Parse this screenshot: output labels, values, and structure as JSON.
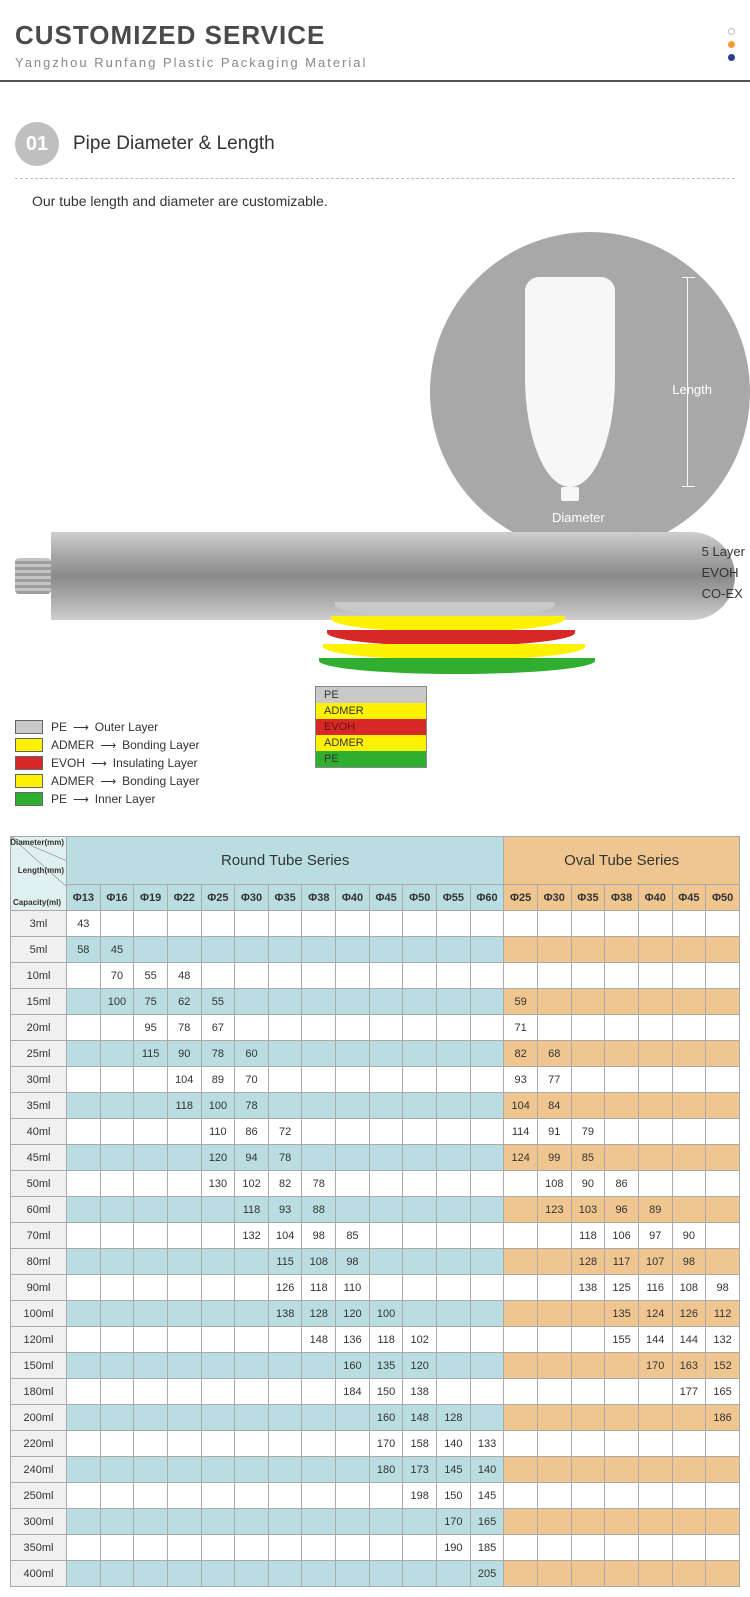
{
  "header": {
    "title": "CUSTOMIZED SERVICE",
    "subtitle": "Yangzhou Runfang Plastic Packaging Material",
    "dot_colors": [
      "#ffffff",
      "#f29b2e",
      "#2b3a8f"
    ]
  },
  "section": {
    "num": "01",
    "title": "Pipe Diameter & Length",
    "desc": "Our tube length and diameter are customizable.",
    "badge_bg": "#bfbfbf"
  },
  "illus": {
    "circle_bg": "#a8a8a8",
    "length_label": "Length",
    "diameter_label": "Diameter"
  },
  "layers": {
    "right_text": [
      "5 Layer",
      "EVOH",
      "CO-EX"
    ],
    "legend": [
      {
        "name": "PE",
        "desc": "Outer Layer",
        "color": "#c9c9c9"
      },
      {
        "name": "ADMER",
        "desc": "Bonding Layer",
        "color": "#fff200"
      },
      {
        "name": "EVOH",
        "desc": "Insulating Layer",
        "color": "#d72828"
      },
      {
        "name": "ADMER",
        "desc": "Bonding Layer",
        "color": "#fff200"
      },
      {
        "name": "PE",
        "desc": "Inner Layer",
        "color": "#2fae2f"
      }
    ],
    "splay_labels": [
      "PE",
      "ADMER",
      "EVOH",
      "ADMER",
      "PE"
    ],
    "splay_colors": [
      "#c9c9c9",
      "#fff200",
      "#d72828",
      "#fff200",
      "#2fae2f"
    ]
  },
  "table": {
    "corner_labels": [
      "Diameter(mm)",
      "Length(mm)",
      "Capacity(ml)"
    ],
    "round_title": "Round Tube Series",
    "oval_title": "Oval Tube Series",
    "round_cols": [
      "Φ13",
      "Φ16",
      "Φ19",
      "Φ22",
      "Φ25",
      "Φ30",
      "Φ35",
      "Φ38",
      "Φ40",
      "Φ45",
      "Φ50",
      "Φ55",
      "Φ60"
    ],
    "oval_cols": [
      "Φ25",
      "Φ30",
      "Φ35",
      "Φ38",
      "Φ40",
      "Φ45",
      "Φ50"
    ],
    "colors": {
      "round_header_bg": "#b9dde0",
      "oval_header_bg": "#f0c690",
      "row_cap_bg": "#f0f0f0",
      "border": "#aaaaaa"
    },
    "rows": [
      {
        "cap": "3ml",
        "stripe": true,
        "r": [
          "43",
          "",
          "",
          "",
          "",
          "",
          "",
          "",
          "",
          "",
          "",
          "",
          ""
        ],
        "o": [
          "",
          "",
          "",
          "",
          "",
          "",
          ""
        ]
      },
      {
        "cap": "5ml",
        "stripe": false,
        "r": [
          "58",
          "45",
          "",
          "",
          "",
          "",
          "",
          "",
          "",
          "",
          "",
          "",
          ""
        ],
        "o": [
          "",
          "",
          "",
          "",
          "",
          "",
          ""
        ]
      },
      {
        "cap": "10ml",
        "stripe": true,
        "r": [
          "",
          "70",
          "55",
          "48",
          "",
          "",
          "",
          "",
          "",
          "",
          "",
          "",
          ""
        ],
        "o": [
          "",
          "",
          "",
          "",
          "",
          "",
          ""
        ]
      },
      {
        "cap": "15ml",
        "stripe": false,
        "r": [
          "",
          "100",
          "75",
          "62",
          "55",
          "",
          "",
          "",
          "",
          "",
          "",
          "",
          ""
        ],
        "o": [
          "59",
          "",
          "",
          "",
          "",
          "",
          ""
        ]
      },
      {
        "cap": "20ml",
        "stripe": true,
        "r": [
          "",
          "",
          "95",
          "78",
          "67",
          "",
          "",
          "",
          "",
          "",
          "",
          "",
          ""
        ],
        "o": [
          "71",
          "",
          "",
          "",
          "",
          "",
          ""
        ]
      },
      {
        "cap": "25ml",
        "stripe": false,
        "r": [
          "",
          "",
          "115",
          "90",
          "78",
          "60",
          "",
          "",
          "",
          "",
          "",
          "",
          ""
        ],
        "o": [
          "82",
          "68",
          "",
          "",
          "",
          "",
          ""
        ]
      },
      {
        "cap": "30ml",
        "stripe": true,
        "r": [
          "",
          "",
          "",
          "104",
          "89",
          "70",
          "",
          "",
          "",
          "",
          "",
          "",
          ""
        ],
        "o": [
          "93",
          "77",
          "",
          "",
          "",
          "",
          ""
        ]
      },
      {
        "cap": "35ml",
        "stripe": false,
        "r": [
          "",
          "",
          "",
          "118",
          "100",
          "78",
          "",
          "",
          "",
          "",
          "",
          "",
          ""
        ],
        "o": [
          "104",
          "84",
          "",
          "",
          "",
          "",
          ""
        ]
      },
      {
        "cap": "40ml",
        "stripe": true,
        "r": [
          "",
          "",
          "",
          "",
          "110",
          "86",
          "72",
          "",
          "",
          "",
          "",
          "",
          ""
        ],
        "o": [
          "114",
          "91",
          "79",
          "",
          "",
          "",
          ""
        ]
      },
      {
        "cap": "45ml",
        "stripe": false,
        "r": [
          "",
          "",
          "",
          "",
          "120",
          "94",
          "78",
          "",
          "",
          "",
          "",
          "",
          ""
        ],
        "o": [
          "124",
          "99",
          "85",
          "",
          "",
          "",
          ""
        ]
      },
      {
        "cap": "50ml",
        "stripe": true,
        "r": [
          "",
          "",
          "",
          "",
          "130",
          "102",
          "82",
          "78",
          "",
          "",
          "",
          "",
          ""
        ],
        "o": [
          "",
          "108",
          "90",
          "86",
          "",
          "",
          ""
        ]
      },
      {
        "cap": "60ml",
        "stripe": false,
        "r": [
          "",
          "",
          "",
          "",
          "",
          "118",
          "93",
          "88",
          "",
          "",
          "",
          "",
          ""
        ],
        "o": [
          "",
          "123",
          "103",
          "96",
          "89",
          "",
          ""
        ]
      },
      {
        "cap": "70ml",
        "stripe": true,
        "r": [
          "",
          "",
          "",
          "",
          "",
          "132",
          "104",
          "98",
          "85",
          "",
          "",
          "",
          ""
        ],
        "o": [
          "",
          "",
          "118",
          "106",
          "97",
          "90",
          ""
        ]
      },
      {
        "cap": "80ml",
        "stripe": false,
        "r": [
          "",
          "",
          "",
          "",
          "",
          "",
          "115",
          "108",
          "98",
          "",
          "",
          "",
          ""
        ],
        "o": [
          "",
          "",
          "128",
          "117",
          "107",
          "98",
          ""
        ]
      },
      {
        "cap": "90ml",
        "stripe": true,
        "r": [
          "",
          "",
          "",
          "",
          "",
          "",
          "126",
          "118",
          "110",
          "",
          "",
          "",
          ""
        ],
        "o": [
          "",
          "",
          "138",
          "125",
          "116",
          "108",
          "98"
        ]
      },
      {
        "cap": "100ml",
        "stripe": false,
        "r": [
          "",
          "",
          "",
          "",
          "",
          "",
          "138",
          "128",
          "120",
          "100",
          "",
          "",
          ""
        ],
        "o": [
          "",
          "",
          "",
          "135",
          "124",
          "126",
          "112"
        ]
      },
      {
        "cap": "120ml",
        "stripe": true,
        "r": [
          "",
          "",
          "",
          "",
          "",
          "",
          "",
          "148",
          "136",
          "118",
          "102",
          "",
          ""
        ],
        "o": [
          "",
          "",
          "",
          "155",
          "144",
          "144",
          "132"
        ]
      },
      {
        "cap": "150ml",
        "stripe": false,
        "r": [
          "",
          "",
          "",
          "",
          "",
          "",
          "",
          "",
          "160",
          "135",
          "120",
          "",
          ""
        ],
        "o": [
          "",
          "",
          "",
          "",
          "170",
          "163",
          "152"
        ]
      },
      {
        "cap": "180ml",
        "stripe": true,
        "r": [
          "",
          "",
          "",
          "",
          "",
          "",
          "",
          "",
          "184",
          "150",
          "138",
          "",
          ""
        ],
        "o": [
          "",
          "",
          "",
          "",
          "",
          "177",
          "165"
        ]
      },
      {
        "cap": "200ml",
        "stripe": false,
        "r": [
          "",
          "",
          "",
          "",
          "",
          "",
          "",
          "",
          "",
          "160",
          "148",
          "128",
          ""
        ],
        "o": [
          "",
          "",
          "",
          "",
          "",
          "",
          "186"
        ]
      },
      {
        "cap": "220ml",
        "stripe": true,
        "r": [
          "",
          "",
          "",
          "",
          "",
          "",
          "",
          "",
          "",
          "170",
          "158",
          "140",
          "133"
        ],
        "o": [
          "",
          "",
          "",
          "",
          "",
          "",
          ""
        ]
      },
      {
        "cap": "240ml",
        "stripe": false,
        "r": [
          "",
          "",
          "",
          "",
          "",
          "",
          "",
          "",
          "",
          "180",
          "173",
          "145",
          "140"
        ],
        "o": [
          "",
          "",
          "",
          "",
          "",
          "",
          ""
        ]
      },
      {
        "cap": "250ml",
        "stripe": true,
        "r": [
          "",
          "",
          "",
          "",
          "",
          "",
          "",
          "",
          "",
          "",
          "198",
          "150",
          "145"
        ],
        "o": [
          "",
          "",
          "",
          "",
          "",
          "",
          ""
        ]
      },
      {
        "cap": "300ml",
        "stripe": false,
        "r": [
          "",
          "",
          "",
          "",
          "",
          "",
          "",
          "",
          "",
          "",
          "",
          "170",
          "165"
        ],
        "o": [
          "",
          "",
          "",
          "",
          "",
          "",
          ""
        ]
      },
      {
        "cap": "350ml",
        "stripe": true,
        "r": [
          "",
          "",
          "",
          "",
          "",
          "",
          "",
          "",
          "",
          "",
          "",
          "190",
          "185"
        ],
        "o": [
          "",
          "",
          "",
          "",
          "",
          "",
          ""
        ]
      },
      {
        "cap": "400ml",
        "stripe": false,
        "r": [
          "",
          "",
          "",
          "",
          "",
          "",
          "",
          "",
          "",
          "",
          "",
          "",
          "205"
        ],
        "o": [
          "",
          "",
          "",
          "",
          "",
          "",
          ""
        ]
      }
    ]
  }
}
